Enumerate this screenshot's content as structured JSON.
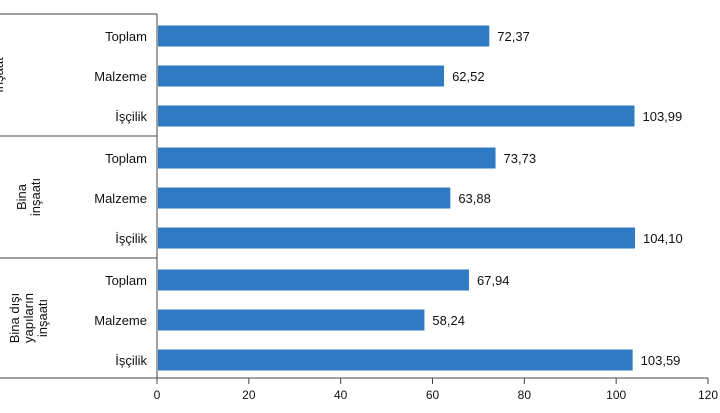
{
  "chart_data": {
    "type": "bar",
    "orientation": "horizontal",
    "bar_color": "#2e7bc4",
    "xlim": [
      0,
      120
    ],
    "x_ticks": [
      "0",
      "20",
      "40",
      "60",
      "80",
      "100",
      "120"
    ],
    "grid": false,
    "groups": [
      {
        "label_lines": [
          "İnşaat"
        ],
        "categories": [
          "Toplam",
          "Malzeme",
          "İşçilik"
        ],
        "values": [
          72.37,
          62.52,
          103.99
        ],
        "value_labels": [
          "72,37",
          "62,52",
          "103,99"
        ]
      },
      {
        "label_lines": [
          "Bina",
          "inşaatı"
        ],
        "categories": [
          "Toplam",
          "Malzeme",
          "İşçilik"
        ],
        "values": [
          73.73,
          63.88,
          104.1
        ],
        "value_labels": [
          "73,73",
          "63,88",
          "104,10"
        ]
      },
      {
        "label_lines": [
          "Bina dışı",
          "yapıların",
          "inşaatı"
        ],
        "categories": [
          "Toplam",
          "Malzeme",
          "İşçilik"
        ],
        "values": [
          67.94,
          58.24,
          103.59
        ],
        "value_labels": [
          "67,94",
          "58,24",
          "103,59"
        ]
      }
    ]
  }
}
